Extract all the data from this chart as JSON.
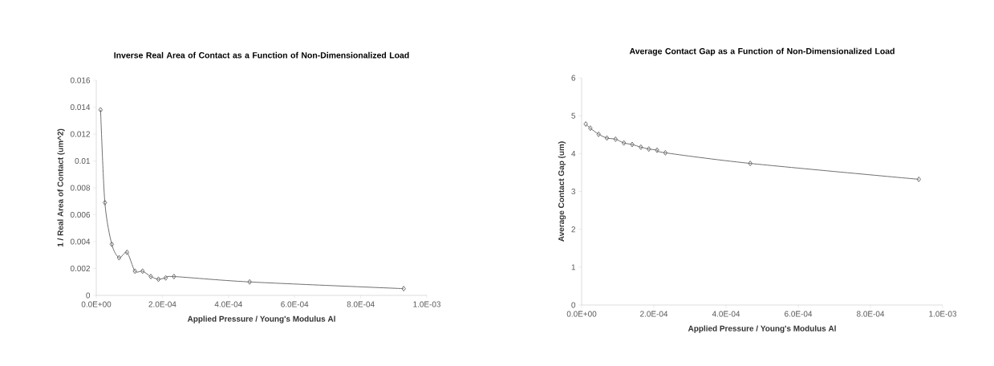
{
  "chart_data": [
    {
      "type": "line",
      "title": "Inverse Real Area of Contact as a Function of Non-Dimensionalized Load",
      "xlabel": "Applied Pressure / Young's Modulus Al",
      "ylabel": "1 / Real Area of Contact (um^2)",
      "x": [
        1.3e-05,
        2.6e-05,
        4.7e-05,
        6.9e-05,
        9.3e-05,
        0.000117,
        0.00014,
        0.000165,
        0.000188,
        0.00021,
        0.000235,
        0.000464,
        0.00093
      ],
      "series": [
        {
          "color": "#707070",
          "values": [
            0.0138,
            0.0069,
            0.0038,
            0.0028,
            0.0032,
            0.0018,
            0.0018,
            0.0014,
            0.0012,
            0.0013,
            0.0014,
            0.001,
            0.0005
          ]
        }
      ],
      "xlim": [
        0,
        0.001
      ],
      "xticks": [
        {
          "value": 0,
          "label": "0.0E+00"
        },
        {
          "value": 0.0002,
          "label": "2.0E-04"
        },
        {
          "value": 0.0004,
          "label": "4.0E-04"
        },
        {
          "value": 0.0006,
          "label": "6.0E-04"
        },
        {
          "value": 0.0008,
          "label": "8.0E-04"
        },
        {
          "value": 0.001,
          "label": "1.0E-03"
        }
      ],
      "ylim": [
        0,
        0.016
      ],
      "yticks": [
        {
          "value": 0,
          "label": "0"
        },
        {
          "value": 0.002,
          "label": "0.002"
        },
        {
          "value": 0.004,
          "label": "0.004"
        },
        {
          "value": 0.006,
          "label": "0.006"
        },
        {
          "value": 0.008,
          "label": "0.008"
        },
        {
          "value": 0.01,
          "label": "0.01"
        },
        {
          "value": 0.012,
          "label": "0.012"
        },
        {
          "value": 0.014,
          "label": "0.014"
        },
        {
          "value": 0.016,
          "label": "0.016"
        }
      ],
      "grid": false,
      "marker": "diamond",
      "line_style": "solid"
    },
    {
      "type": "line",
      "title": "Average Contact Gap as a Function of Non-Dimensionalized Load",
      "xlabel": "Applied Pressure / Young's Modulus Al",
      "ylabel": "Average Contact Gap (um)",
      "x": [
        1.15e-05,
        2.4e-05,
        4.7e-05,
        7e-05,
        9.4e-05,
        0.000117,
        0.00014,
        0.000164,
        0.000186,
        0.000209,
        0.000232,
        0.000467,
        0.000934
      ],
      "series": [
        {
          "color": "#707070",
          "values": [
            4.78,
            4.67,
            4.51,
            4.41,
            4.38,
            4.28,
            4.24,
            4.17,
            4.12,
            4.09,
            4.02,
            3.74,
            3.32
          ]
        }
      ],
      "xlim": [
        0,
        0.001
      ],
      "xticks": [
        {
          "value": 0,
          "label": "0.0E+00"
        },
        {
          "value": 0.0002,
          "label": "2.0E-04"
        },
        {
          "value": 0.0004,
          "label": "4.0E-04"
        },
        {
          "value": 0.0006,
          "label": "6.0E-04"
        },
        {
          "value": 0.0008,
          "label": "8.0E-04"
        },
        {
          "value": 0.001,
          "label": "1.0E-03"
        }
      ],
      "ylim": [
        0,
        6
      ],
      "yticks": [
        {
          "value": 0,
          "label": "0"
        },
        {
          "value": 1,
          "label": "1"
        },
        {
          "value": 2,
          "label": "2"
        },
        {
          "value": 3,
          "label": "3"
        },
        {
          "value": 4,
          "label": "4"
        },
        {
          "value": 5,
          "label": "5"
        },
        {
          "value": 6,
          "label": "6"
        }
      ],
      "grid": false,
      "marker": "diamond",
      "line_style": "solid"
    }
  ]
}
